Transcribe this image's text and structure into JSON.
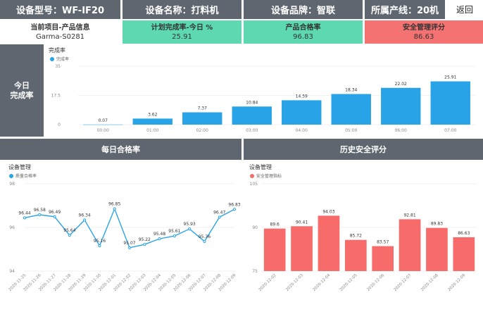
{
  "header": {
    "device_model": "设备型号：WF-IF20",
    "device_name": "设备名称：打料机",
    "device_brand": "设备品牌：智联",
    "production_line": "所属产线：20机",
    "back_label": "返回"
  },
  "kpis": {
    "project": {
      "title": "当前项目-产品信息",
      "value": "Garma-S0281"
    },
    "plan_completion": {
      "title": "计划完成率-今日 %",
      "value": "25.91"
    },
    "pass_rate": {
      "title": "产品合格率",
      "value": "96.83"
    },
    "safety": {
      "title": "安全管理评分",
      "value": "86.63"
    }
  },
  "today_panel": {
    "side_label_line1": "今日",
    "side_label_line2": "完成率"
  },
  "daily_section": {
    "header": "每日合格率"
  },
  "history_section": {
    "header": "历史安全评分"
  },
  "colors": {
    "header_bg": "#5f6670",
    "green": "#5dd8b0",
    "red": "#f57272",
    "blue": "#29a3e8",
    "bar_red": "#f86b6b"
  },
  "chart_data": [
    {
      "type": "bar",
      "title": "完成率",
      "series": [
        {
          "name": "完成率",
          "values": [
            0.07,
            3.62,
            7.37,
            10.84,
            14.59,
            18.34,
            22.02,
            25.91
          ]
        }
      ],
      "categories": [
        "00:00",
        "01:00",
        "02:00",
        "03:00",
        "04:00",
        "05:00",
        "06:00",
        "07:00"
      ],
      "ylim": [
        0,
        35
      ],
      "yticks": [
        "0",
        "17.5",
        "35"
      ],
      "legend": "top-left"
    },
    {
      "type": "line",
      "title": "设备管理",
      "series": [
        {
          "name": "质量合格率",
          "values": [
            96.44,
            96.58,
            96.49,
            95.64,
            96.34,
            95.16,
            96.85,
            95.07,
            95.22,
            95.48,
            95.61,
            95.93,
            95.36,
            96.47,
            96.83
          ]
        }
      ],
      "categories": [
        "2020-11-25",
        "2020-11-26",
        "2020-11-27",
        "2020-11-28",
        "2020-11-29",
        "2020-11-30",
        "2020-12-01",
        "2020-12-02",
        "2020-12-03",
        "2020-12-04",
        "2020-12-05",
        "2020-12-06",
        "2020-12-07",
        "2020-12-08",
        "2020-12-09"
      ],
      "ylim": [
        94,
        98
      ],
      "yticks": [
        "94",
        "96",
        "98"
      ],
      "legend": "top-left"
    },
    {
      "type": "bar",
      "title": "设备管理",
      "series": [
        {
          "name": "安全管理指标",
          "values": [
            89.6,
            90.41,
            94.03,
            85.72,
            83.57,
            92.81,
            89.83,
            86.63
          ]
        }
      ],
      "categories": [
        "2020-12-02",
        "2020-12-03",
        "2020-12-04",
        "2020-12-05",
        "2020-12-06",
        "2020-12-07",
        "2020-12-08",
        "2020-12-09"
      ],
      "ylim": [
        75,
        105
      ],
      "yticks": [
        "75",
        "90",
        "105"
      ],
      "legend": "top-left"
    }
  ]
}
